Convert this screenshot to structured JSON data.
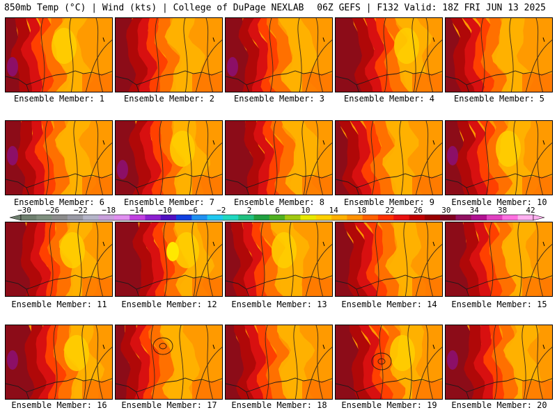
{
  "header": {
    "left": "850mb Temp (°C) | Wind (kts) | College of DuPage NEXLAB",
    "right": "06Z GEFS | F132 Valid: 18Z FRI JUN 13 2025"
  },
  "panel_label_prefix": "Ensemble Member:",
  "members": [
    {
      "label": "Ensemble Member: 1",
      "extra": ""
    },
    {
      "label": "Ensemble Member: 2",
      "extra": ""
    },
    {
      "label": "Ensemble Member: 3",
      "extra": ""
    },
    {
      "label": "Ensemble Member: 4",
      "extra": ""
    },
    {
      "label": "Ensemble Member: 5",
      "extra": ""
    },
    {
      "label": "Ensemble Member: 6",
      "extra": ""
    },
    {
      "label": "Ensemble Member: 7",
      "extra": ""
    },
    {
      "label": "Ensemble Member: 8",
      "extra": ""
    },
    {
      "label": "Ensemble Member: 9",
      "extra": ""
    },
    {
      "label": "Ensemble Member: 10",
      "extra": ""
    },
    {
      "label": "Ensemble Member: 11",
      "extra": ""
    },
    {
      "label": "Ensemble Member: 12",
      "extra": ""
    },
    {
      "label": "Ensemble Member: 13",
      "extra": ""
    },
    {
      "label": "Ensemble Member: 14",
      "extra": ""
    },
    {
      "label": "Ensemble Member: 15",
      "extra": ""
    },
    {
      "label": "Ensemble Member: 16",
      "extra": ""
    },
    {
      "label": "Ensemble Member: 17",
      "extra": "closed-contour"
    },
    {
      "label": "Ensemble Member: 18",
      "extra": ""
    },
    {
      "label": "Ensemble Member: 19",
      "extra": "closed-contour"
    },
    {
      "label": "Ensemble Member: 20",
      "extra": ""
    }
  ],
  "colorbar": {
    "labels": [
      "-30",
      "-26",
      "-22",
      "-18",
      "-14",
      "-10",
      "-6",
      "-2",
      "2",
      "6",
      "10",
      "14",
      "18",
      "22",
      "26",
      "30",
      "34",
      "38",
      "42"
    ],
    "colors": [
      "#6e7f6e",
      "#7e8f7e",
      "#8b8b8b",
      "#9a9aa6",
      "#b4b4c8",
      "#c8a0dc",
      "#e090f0",
      "#c040e0",
      "#8c20d0",
      "#5010c0",
      "#1040e0",
      "#2090f0",
      "#20c8f0",
      "#20d8c0",
      "#20c080",
      "#20a040",
      "#50b020",
      "#a0c810",
      "#e8e800",
      "#ffd000",
      "#ffb000",
      "#ff9000",
      "#ff6000",
      "#ff3000",
      "#e81010",
      "#c00000",
      "#980000",
      "#800020",
      "#901060",
      "#b01090",
      "#e040c0",
      "#ff70e0",
      "#ffb0f0"
    ]
  },
  "field_colors": {
    "t30": "#8c0c18",
    "t28": "#b00808",
    "t26": "#d81010",
    "t24": "#ff4000",
    "t22": "#ff7000",
    "t20": "#ff9a00",
    "t18": "#ffb400",
    "t16": "#ffd000",
    "t14": "#ffe800",
    "hot": "#8c1070"
  }
}
